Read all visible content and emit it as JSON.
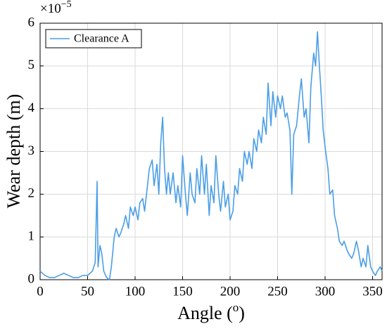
{
  "chart_data": {
    "type": "line",
    "xlabel": {
      "text": "Angle (",
      "sup": "o",
      "end": ")"
    },
    "ylabel": "Wear depth (m)",
    "y_scale": {
      "base": "×10",
      "exponent": "−5"
    },
    "legend": "upper left",
    "grid": true,
    "xlim": [
      0,
      360
    ],
    "xticks": [
      0,
      50,
      100,
      150,
      200,
      250,
      300,
      350
    ],
    "ylim": [
      0,
      6
    ],
    "yticks": [
      0,
      1,
      2,
      3,
      4,
      5,
      6
    ],
    "x": [
      0,
      5,
      10,
      15,
      20,
      25,
      30,
      35,
      40,
      45,
      50,
      55,
      58,
      60,
      61,
      63,
      65,
      67,
      70,
      73,
      75,
      78,
      80,
      83,
      85,
      88,
      90,
      93,
      95,
      98,
      100,
      103,
      105,
      108,
      110,
      113,
      115,
      118,
      120,
      123,
      125,
      127,
      129,
      131,
      133,
      135,
      137,
      140,
      143,
      145,
      148,
      150,
      153,
      155,
      158,
      160,
      163,
      165,
      168,
      170,
      173,
      175,
      178,
      180,
      183,
      185,
      188,
      190,
      193,
      195,
      198,
      200,
      203,
      205,
      208,
      210,
      213,
      215,
      218,
      220,
      223,
      225,
      228,
      230,
      233,
      235,
      238,
      240,
      243,
      245,
      248,
      250,
      253,
      255,
      258,
      260,
      263,
      265,
      267,
      270,
      273,
      275,
      278,
      280,
      283,
      285,
      288,
      290,
      292,
      294,
      296,
      298,
      300,
      303,
      305,
      308,
      310,
      313,
      315,
      318,
      320,
      323,
      325,
      328,
      330,
      333,
      335,
      338,
      340,
      343,
      345,
      348,
      350,
      353,
      355,
      358,
      360
    ],
    "series": [
      {
        "name": "Clearance A",
        "color": "#4a9ee6",
        "values": [
          0.2,
          0.1,
          0.05,
          0.05,
          0.1,
          0.15,
          0.1,
          0.05,
          0.05,
          0.1,
          0.1,
          0.2,
          0.4,
          2.3,
          0.3,
          0.8,
          0.6,
          0.2,
          0.05,
          0,
          0.3,
          1.0,
          1.2,
          1.0,
          1.1,
          1.3,
          1.5,
          1.2,
          1.7,
          1.5,
          1.7,
          1.4,
          1.8,
          1.9,
          1.6,
          2.2,
          2.6,
          2.8,
          2.2,
          2.7,
          2.0,
          3.2,
          3.8,
          2.6,
          2.0,
          2.5,
          2.0,
          2.5,
          1.8,
          2.2,
          1.7,
          2.9,
          2.0,
          1.5,
          2.5,
          2.0,
          1.8,
          2.6,
          2.0,
          2.9,
          2.0,
          2.7,
          1.5,
          2.2,
          1.8,
          2.9,
          2.0,
          1.6,
          2.3,
          1.7,
          2.0,
          1.4,
          1.6,
          2.2,
          2.0,
          2.6,
          2.3,
          3.0,
          2.7,
          3.0,
          2.6,
          3.3,
          3.0,
          3.5,
          3.2,
          3.8,
          3.4,
          4.6,
          3.6,
          4.4,
          3.8,
          4.3,
          4.0,
          4.3,
          3.8,
          3.9,
          3.5,
          2.0,
          3.4,
          3.6,
          4.3,
          4.7,
          3.8,
          4.0,
          3.2,
          4.5,
          5.3,
          5.0,
          5.8,
          5.0,
          4.3,
          3.5,
          3.1,
          2.6,
          2.0,
          2.1,
          1.5,
          1.2,
          0.9,
          0.8,
          0.9,
          0.7,
          0.6,
          0.5,
          0.6,
          0.9,
          0.7,
          0.3,
          0.5,
          0.3,
          0.8,
          0.3,
          0.2,
          0.1,
          0.2,
          0.3,
          0.2
        ]
      }
    ]
  }
}
